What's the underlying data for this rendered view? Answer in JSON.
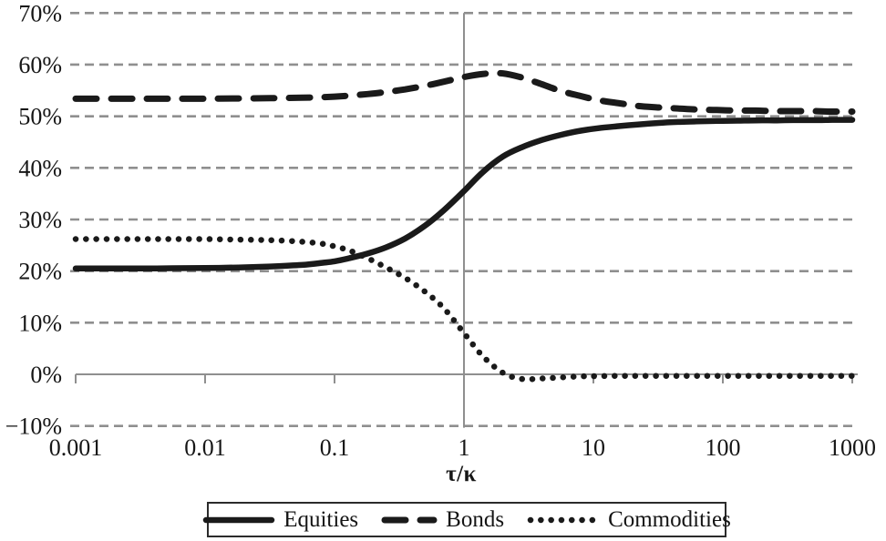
{
  "figure": {
    "background": "#ffffff",
    "text_color": "#161616",
    "gridline_color": "#8f8f8f",
    "axis_color": "#8f8f8f",
    "series_color": "#1a1a1a"
  },
  "chart_data": {
    "type": "line",
    "title": "",
    "xlabel": "τ/κ",
    "ylabel": "",
    "x_axis": {
      "scale": "log",
      "min": 0.001,
      "max": 1000,
      "ticks": [
        {
          "value": 0.001,
          "label": "0.001"
        },
        {
          "value": 0.01,
          "label": "0.01"
        },
        {
          "value": 0.1,
          "label": "0.1"
        },
        {
          "value": 1,
          "label": "1"
        },
        {
          "value": 10,
          "label": "10"
        },
        {
          "value": 100,
          "label": "100"
        },
        {
          "value": 1000,
          "label": "1000"
        }
      ],
      "vertical_reference_line_at": 1
    },
    "y_axis": {
      "unit": "%",
      "min": -10,
      "max": 70,
      "tick_step": 10,
      "ticks": [
        {
          "value": 70,
          "label": "70%"
        },
        {
          "value": 60,
          "label": "60%"
        },
        {
          "value": 50,
          "label": "50%"
        },
        {
          "value": 40,
          "label": "40%"
        },
        {
          "value": 30,
          "label": "30%"
        },
        {
          "value": 20,
          "label": "20%"
        },
        {
          "value": 10,
          "label": "10%"
        },
        {
          "value": 0,
          "label": "0%"
        },
        {
          "value": -10,
          "label": "−10%"
        }
      ]
    },
    "grid": {
      "horizontal_dashed": true,
      "zero_line_solid": true
    },
    "legend": {
      "position": "bottom",
      "bordered": true
    },
    "series": [
      {
        "name": "Equities",
        "line_style": "solid",
        "color": "#1a1a1a",
        "points": [
          [
            0.001,
            20.5
          ],
          [
            0.0018,
            20.5
          ],
          [
            0.0032,
            20.5
          ],
          [
            0.0056,
            20.55
          ],
          [
            0.01,
            20.6
          ],
          [
            0.018,
            20.7
          ],
          [
            0.032,
            20.9
          ],
          [
            0.056,
            21.2
          ],
          [
            0.08,
            21.6
          ],
          [
            0.1,
            21.9
          ],
          [
            0.13,
            22.5
          ],
          [
            0.18,
            23.4
          ],
          [
            0.25,
            24.6
          ],
          [
            0.35,
            26.3
          ],
          [
            0.5,
            28.8
          ],
          [
            0.7,
            31.8
          ],
          [
            1,
            35.5
          ],
          [
            1.4,
            39.2
          ],
          [
            2,
            42.2
          ],
          [
            2.8,
            44.0
          ],
          [
            4,
            45.4
          ],
          [
            5.6,
            46.4
          ],
          [
            8,
            47.2
          ],
          [
            11,
            47.7
          ],
          [
            16,
            48.1
          ],
          [
            22,
            48.4
          ],
          [
            32,
            48.7
          ],
          [
            45,
            48.9
          ],
          [
            63,
            49.0
          ],
          [
            90,
            49.1
          ],
          [
            130,
            49.15
          ],
          [
            180,
            49.2
          ],
          [
            250,
            49.2
          ],
          [
            350,
            49.25
          ],
          [
            500,
            49.25
          ],
          [
            700,
            49.3
          ],
          [
            1000,
            49.3
          ]
        ]
      },
      {
        "name": "Bonds",
        "line_style": "dashed",
        "color": "#1a1a1a",
        "points": [
          [
            0.001,
            53.4
          ],
          [
            0.0018,
            53.4
          ],
          [
            0.0032,
            53.4
          ],
          [
            0.0056,
            53.4
          ],
          [
            0.01,
            53.4
          ],
          [
            0.018,
            53.45
          ],
          [
            0.032,
            53.5
          ],
          [
            0.056,
            53.6
          ],
          [
            0.08,
            53.7
          ],
          [
            0.1,
            53.8
          ],
          [
            0.13,
            54.0
          ],
          [
            0.18,
            54.3
          ],
          [
            0.25,
            54.7
          ],
          [
            0.35,
            55.2
          ],
          [
            0.5,
            55.9
          ],
          [
            0.7,
            56.7
          ],
          [
            1,
            57.6
          ],
          [
            1.4,
            58.2
          ],
          [
            2,
            58.3
          ],
          [
            2.8,
            57.5
          ],
          [
            4,
            56.2
          ],
          [
            5.6,
            54.9
          ],
          [
            8,
            53.9
          ],
          [
            11,
            53.1
          ],
          [
            16,
            52.5
          ],
          [
            22,
            52.0
          ],
          [
            32,
            51.7
          ],
          [
            45,
            51.5
          ],
          [
            63,
            51.3
          ],
          [
            90,
            51.2
          ],
          [
            130,
            51.1
          ],
          [
            180,
            51.1
          ],
          [
            250,
            51.0
          ],
          [
            350,
            51.0
          ],
          [
            500,
            51.0
          ],
          [
            700,
            50.9
          ],
          [
            1000,
            50.9
          ]
        ]
      },
      {
        "name": "Commodities",
        "line_style": "dotted",
        "color": "#1a1a1a",
        "points": [
          [
            0.001,
            26.2
          ],
          [
            0.0018,
            26.2
          ],
          [
            0.0032,
            26.2
          ],
          [
            0.0056,
            26.2
          ],
          [
            0.01,
            26.2
          ],
          [
            0.018,
            26.1
          ],
          [
            0.032,
            26.0
          ],
          [
            0.056,
            25.7
          ],
          [
            0.08,
            25.3
          ],
          [
            0.1,
            24.8
          ],
          [
            0.13,
            24.0
          ],
          [
            0.18,
            22.5
          ],
          [
            0.25,
            20.7
          ],
          [
            0.35,
            18.7
          ],
          [
            0.5,
            16.0
          ],
          [
            0.7,
            12.8
          ],
          [
            1,
            8.0
          ],
          [
            1.4,
            3.5
          ],
          [
            2,
            0.3
          ],
          [
            2.8,
            -0.9
          ],
          [
            4,
            -0.8
          ],
          [
            5.6,
            -0.6
          ],
          [
            8,
            -0.4
          ],
          [
            11,
            -0.35
          ],
          [
            16,
            -0.3
          ],
          [
            22,
            -0.3
          ],
          [
            32,
            -0.3
          ],
          [
            45,
            -0.3
          ],
          [
            63,
            -0.3
          ],
          [
            90,
            -0.3
          ],
          [
            130,
            -0.3
          ],
          [
            180,
            -0.3
          ],
          [
            250,
            -0.3
          ],
          [
            350,
            -0.3
          ],
          [
            500,
            -0.3
          ],
          [
            700,
            -0.3
          ],
          [
            1000,
            -0.3
          ]
        ]
      }
    ]
  }
}
